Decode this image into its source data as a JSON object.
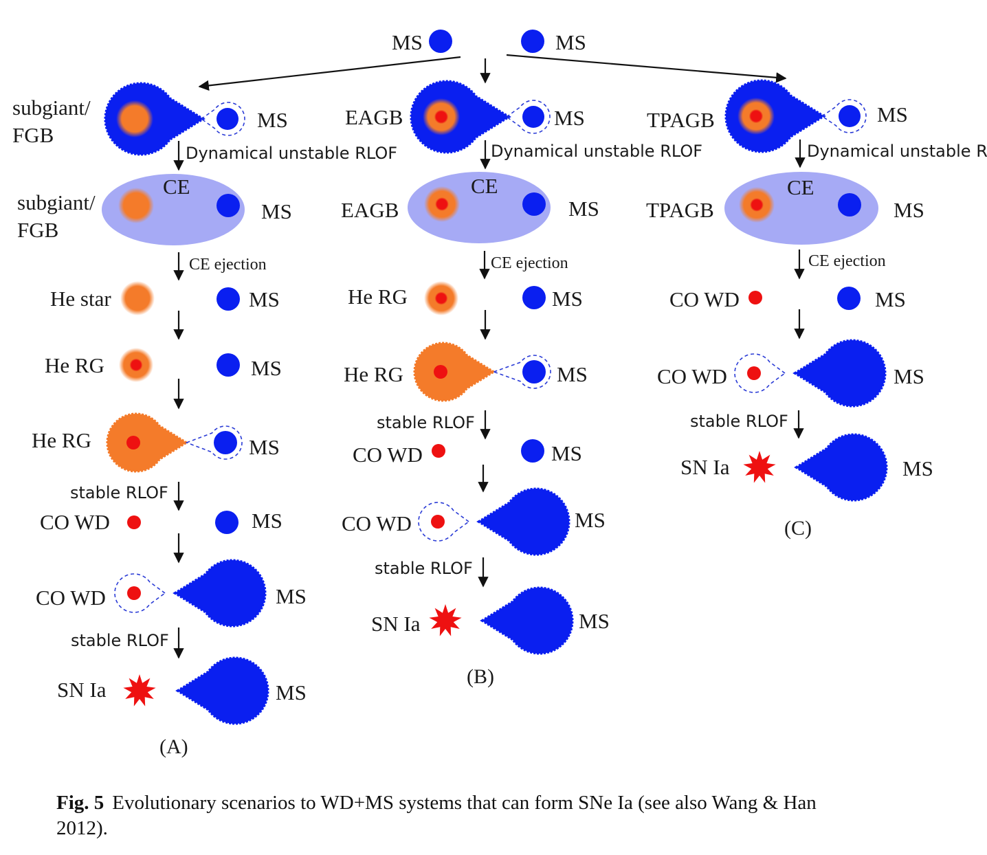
{
  "figure": {
    "top": {
      "left_label": "MS",
      "right_label": "MS"
    },
    "panels": {
      "A": {
        "label": "(A)",
        "rows": [
          {
            "left": "subgiant/\nFGB",
            "right": "MS",
            "arrow": "Dynamical unstable RLOF"
          },
          {
            "left": "subgiant/\nFGB",
            "ce": "CE",
            "right": "MS",
            "arrow": "CE ejection"
          },
          {
            "left": "He star",
            "right": "MS"
          },
          {
            "left": "He RG",
            "right": "MS"
          },
          {
            "left": "He RG",
            "right": "MS",
            "arrow": "stable RLOF"
          },
          {
            "left": "CO WD",
            "right": "MS"
          },
          {
            "left": "CO WD",
            "right": "MS",
            "arrow": "stable RLOF"
          },
          {
            "left": "SN Ia",
            "right": "MS"
          }
        ]
      },
      "B": {
        "label": "(B)",
        "rows": [
          {
            "left": "EAGB",
            "right": "MS",
            "arrow": "Dynamical unstable RLOF"
          },
          {
            "left": "EAGB",
            "ce": "CE",
            "right": "MS",
            "arrow": "CE ejection"
          },
          {
            "left": "He RG",
            "right": "MS"
          },
          {
            "left": "He RG",
            "right": "MS",
            "arrow": "stable RLOF"
          },
          {
            "left": "CO WD",
            "right": "MS"
          },
          {
            "left": "CO WD",
            "right": "MS",
            "arrow": "stable RLOF"
          },
          {
            "left": "SN Ia",
            "right": "MS"
          }
        ]
      },
      "C": {
        "label": "(C)",
        "rows": [
          {
            "left": "TPAGB",
            "right": "MS",
            "arrow": "Dynamical unstable RLOF"
          },
          {
            "left": "TPAGB",
            "ce": "CE",
            "right": "MS",
            "arrow": "CE ejection"
          },
          {
            "left": "CO WD",
            "right": "MS"
          },
          {
            "left": "CO WD",
            "right": "MS",
            "arrow": "stable RLOF"
          },
          {
            "left": "SN Ia",
            "right": "MS"
          }
        ]
      }
    },
    "colors": {
      "ms_blue": "#0a1ff0",
      "core_orange": "#f47b2a",
      "core_red": "#ee1111",
      "ce_envelope": "#a6aaf5",
      "sn_red": "#ee1111",
      "roche_dash": "#2a3bd6"
    }
  },
  "caption": {
    "fig_label": "Fig. 5",
    "text": "Evolutionary scenarios to WD+MS systems that can form SNe Ia (see also Wang & Han 2012)."
  }
}
